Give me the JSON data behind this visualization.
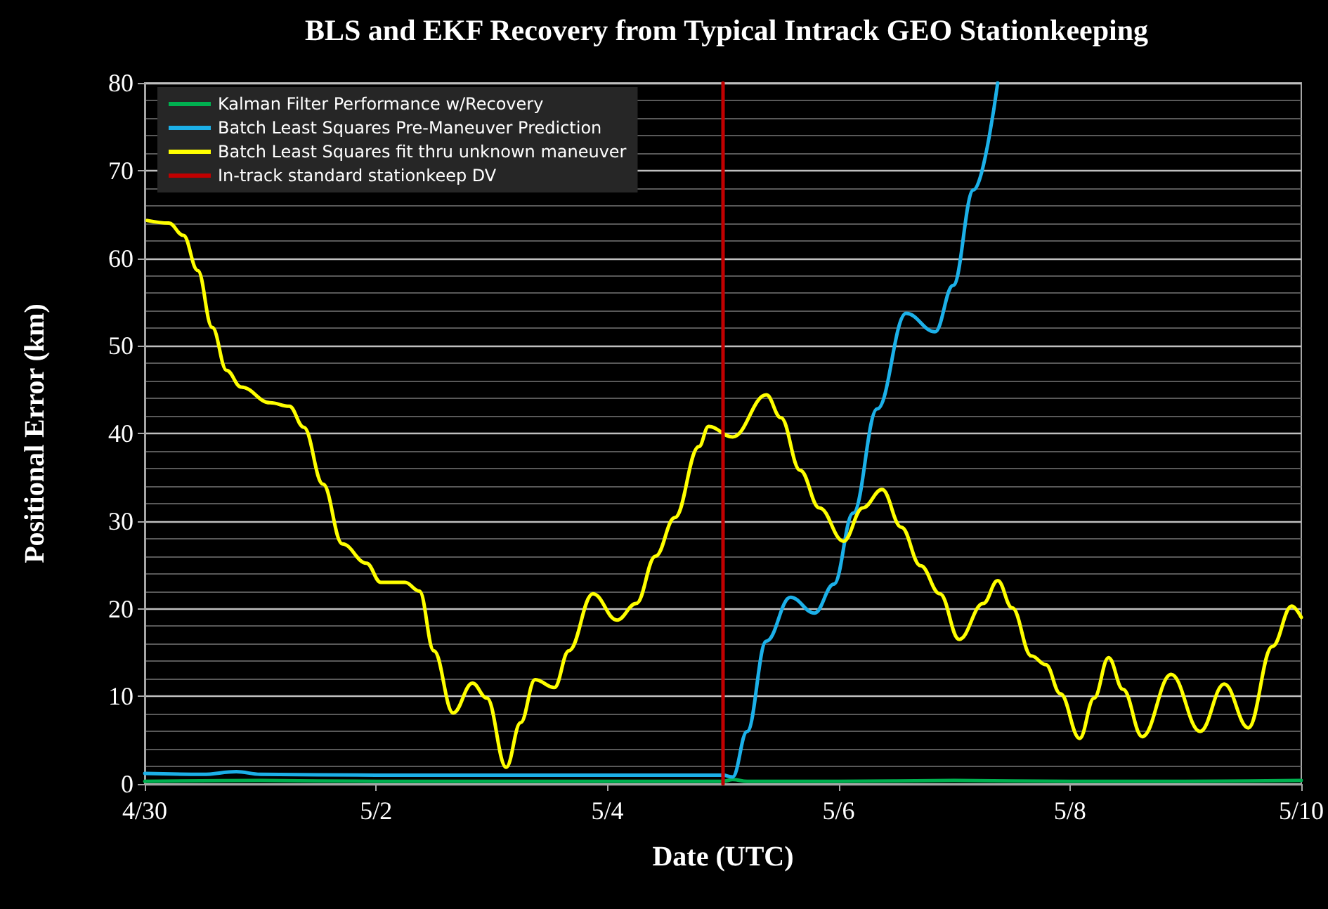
{
  "chart_data": {
    "type": "line",
    "title": "BLS and EKF Recovery from Typical Intrack GEO Stationkeeping",
    "xlabel": "Date (UTC)",
    "ylabel": "Positional Error (km)",
    "xlim": [
      "--04-30",
      "--05-10"
    ],
    "xticks": [
      {
        "value": "--04-30",
        "label": "4/30"
      },
      {
        "value": "--05-02",
        "label": "5/2"
      },
      {
        "value": "--05-04",
        "label": "5/4"
      },
      {
        "value": "--05-06",
        "label": "5/6"
      },
      {
        "value": "--05-08",
        "label": "5/8"
      },
      {
        "value": "--05-10",
        "label": "5/10"
      }
    ],
    "ylim": [
      0,
      80
    ],
    "yticks": [
      0,
      10,
      20,
      30,
      40,
      50,
      60,
      70,
      80
    ],
    "grid": "y",
    "legend": "top left",
    "marker": "none",
    "line_style": "solid",
    "series": [
      {
        "name": "Kalman Filter Performance w/Recovery",
        "color": "#00b050",
        "x": [
          "--04-30T00:00",
          "--05-01T00:00",
          "--05-02T00:00",
          "--05-03T00:00",
          "--05-04T00:00",
          "--05-05T00:00",
          "--05-05T02:00",
          "--05-05T05:00",
          "--05-06T00:00",
          "--05-07T00:00",
          "--05-08T00:00",
          "--05-09T00:00",
          "--05-10T00:00"
        ],
        "values": [
          0.3,
          0.4,
          0.3,
          0.3,
          0.3,
          0.3,
          0.5,
          0.3,
          0.3,
          0.4,
          0.3,
          0.3,
          0.4
        ]
      },
      {
        "name": "Batch Least Squares Pre-Maneuver Prediction",
        "color": "#1cb0e8",
        "x": [
          "--04-30T00:00",
          "--04-30T12:00",
          "--04-30T19:00",
          "--05-01T00:00",
          "--05-02T00:00",
          "--05-03T00:00",
          "--05-04T00:00",
          "--05-05T00:00",
          "--05-05T02:00",
          "--05-05T05:00",
          "--05-05T09:00",
          "--05-05T14:00",
          "--05-05T19:00",
          "--05-05T23:00",
          "--05-06T03:00",
          "--05-06T08:00",
          "--05-06T14:00",
          "--05-06T20:00",
          "--05-06T23:45",
          "--05-07T04:00",
          "--05-07T09:00"
        ],
        "values": [
          1.2,
          1.1,
          1.4,
          1.1,
          1,
          1,
          1,
          1,
          0.8,
          6,
          16.3,
          21.3,
          19.5,
          22.8,
          30.9,
          42.8,
          53.7,
          51.6,
          56.9,
          67.8,
          80
        ]
      },
      {
        "name": "Batch Least Squares fit thru unknown maneuver",
        "color": "#ffff00",
        "x": [
          "--04-30T00:30",
          "--04-30T05:00",
          "--04-30T08:00",
          "--04-30T11:00",
          "--04-30T14:00",
          "--04-30T17:00",
          "--04-30T20:00",
          "--05-01T02:00",
          "--05-01T06:00",
          "--05-01T09:00",
          "--05-01T13:00",
          "--05-01T17:00",
          "--05-01T22:00",
          "--05-02T01:00",
          "--05-02T06:00",
          "--05-02T09:00",
          "--05-02T12:00",
          "--05-02T16:00",
          "--05-02T20:00",
          "--05-02T23:00",
          "--05-03T03:00",
          "--05-03T06:00",
          "--05-03T09:00",
          "--05-03T13:00",
          "--05-03T16:00",
          "--05-03T21:00",
          "--05-04T02:00",
          "--05-04T06:00",
          "--05-04T10:00",
          "--05-04T14:00",
          "--05-04T19:00",
          "--05-04T21:00",
          "--05-05T02:00",
          "--05-05T09:00",
          "--05-05T12:00",
          "--05-05T16:00",
          "--05-05T20:00",
          "--05-06T01:00",
          "--05-06T05:00",
          "--05-06T09:00",
          "--05-06T13:00",
          "--05-06T17:00",
          "--05-06T21:00",
          "--05-07T01:00",
          "--05-07T06:00",
          "--05-07T09:00",
          "--05-07T12:00",
          "--05-07T16:00",
          "--05-07T19:00",
          "--05-07T22:00",
          "--05-08T02:00",
          "--05-08T05:00",
          "--05-08T08:00",
          "--05-08T11:00",
          "--05-08T15:00",
          "--05-08T21:00",
          "--05-09T03:00",
          "--05-09T08:00",
          "--05-09T13:00",
          "--05-09T18:00",
          "--05-09T22:00",
          "--05-10T00:00"
        ],
        "values": [
          64.3,
          64,
          62.6,
          58.6,
          52.1,
          47.2,
          45.3,
          43.5,
          43.1,
          40.7,
          34.2,
          27.4,
          25.2,
          23,
          23,
          22,
          15.2,
          8.1,
          11.5,
          9.8,
          1.9,
          7,
          11.9,
          11,
          15.2,
          21.7,
          18.7,
          20.6,
          26,
          30.4,
          38.5,
          40.8,
          39.6,
          44.4,
          41.8,
          35.8,
          31.5,
          27.7,
          31.5,
          33.6,
          29.3,
          24.9,
          21.7,
          16.5,
          20.6,
          23.2,
          20.1,
          14.6,
          13.6,
          10.3,
          5.2,
          9.8,
          14.4,
          10.8,
          5.4,
          12.5,
          6,
          11.4,
          6.4,
          15.7,
          20.3,
          19
        ]
      },
      {
        "name": "In-track standard stationkeep DV",
        "color": "#c00000",
        "x": [
          "--05-05",
          "--05-05"
        ],
        "values": [
          0,
          80
        ]
      }
    ]
  }
}
